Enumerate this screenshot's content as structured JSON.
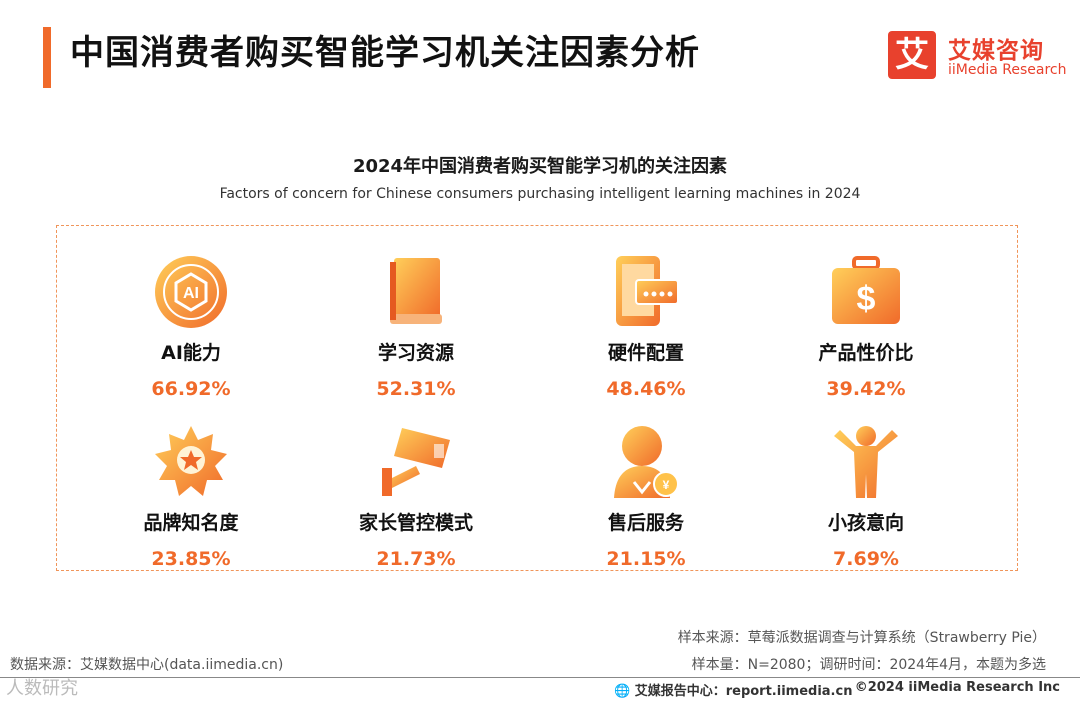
{
  "header": {
    "title": "中国消费者购买智能学习机关注因素分析"
  },
  "brand": {
    "logo_char": "艾",
    "name_cn": "艾媒咨询",
    "name_en": "iiMedia Research"
  },
  "colors": {
    "accent": "#f06a2a",
    "brand_red": "#e8412d",
    "icon_gradient": [
      "#ffb347",
      "#f06a2a"
    ]
  },
  "chart_data": {
    "type": "table",
    "title": "2024年中国消费者购买智能学习机的关注因素",
    "subtitle": "Factors of concern for Chinese consumers purchasing intelligent learning machines in 2024",
    "categories": [
      "AI能力",
      "学习资源",
      "硬件配置",
      "产品性价比",
      "品牌知名度",
      "家长管控模式",
      "售后服务",
      "小孩意向"
    ],
    "values": [
      66.92,
      52.31,
      48.46,
      39.42,
      23.85,
      21.73,
      21.15,
      7.69
    ],
    "value_labels": [
      "66.92%",
      "52.31%",
      "48.46%",
      "39.42%",
      "23.85%",
      "21.73%",
      "21.15%",
      "7.69%"
    ],
    "icons": [
      "ai-badge-icon",
      "book-icon",
      "tablet-device-icon",
      "money-bag-icon",
      "award-medal-icon",
      "camera-monitor-icon",
      "service-person-icon",
      "child-icon"
    ]
  },
  "footer": {
    "sample_source": "样本来源：草莓派数据调查与计算系统（Strawberry Pie）",
    "sample_info": "样本量：N=2080；调研时间：2024年4月，本题为多选",
    "data_source": "数据来源：艾媒数据中心(data.iimedia.cn)",
    "watermark": "人数研究",
    "report_center": "艾媒报告中心：report.iimedia.cn",
    "copyright": "©2024  iiMedia Research  Inc"
  }
}
